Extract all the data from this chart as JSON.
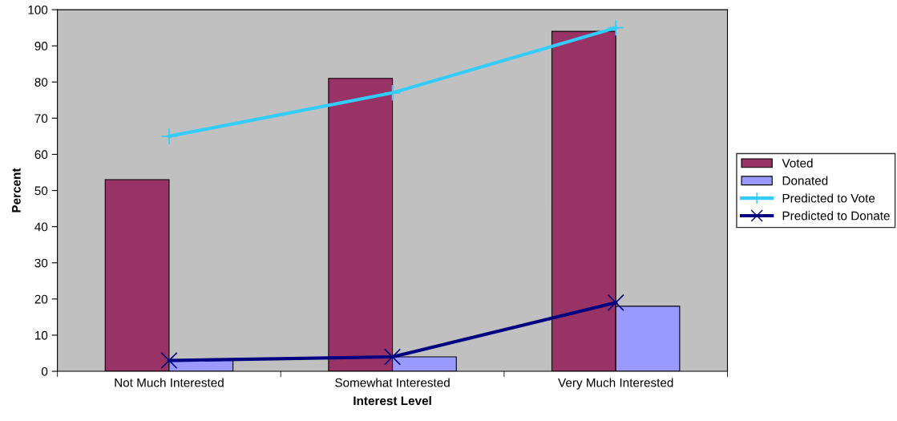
{
  "chart_data": {
    "type": "bar",
    "xlabel": "Interest Level",
    "ylabel": "Percent",
    "categories": [
      "Not Much Interested",
      "Somewhat Interested",
      "Very Much Interested"
    ],
    "series": [
      {
        "name": "Voted",
        "color": "#993366",
        "values": [
          53,
          81,
          94
        ]
      },
      {
        "name": "Donated",
        "color": "#9999ff",
        "values": [
          3,
          4,
          18
        ]
      },
      {
        "name": "Predicted to Vote",
        "type": "line",
        "color": "#33ccff",
        "marker": "plus",
        "values": [
          65,
          77,
          95
        ]
      },
      {
        "name": "Predicted to Donate",
        "type": "line",
        "color": "#000080",
        "marker": "cross",
        "values": [
          3,
          4,
          19
        ]
      }
    ],
    "ylim": [
      0,
      100
    ],
    "yticks": [
      0,
      10,
      20,
      30,
      40,
      50,
      60,
      70,
      80,
      90,
      100
    ],
    "grid": false,
    "legend": "right"
  }
}
